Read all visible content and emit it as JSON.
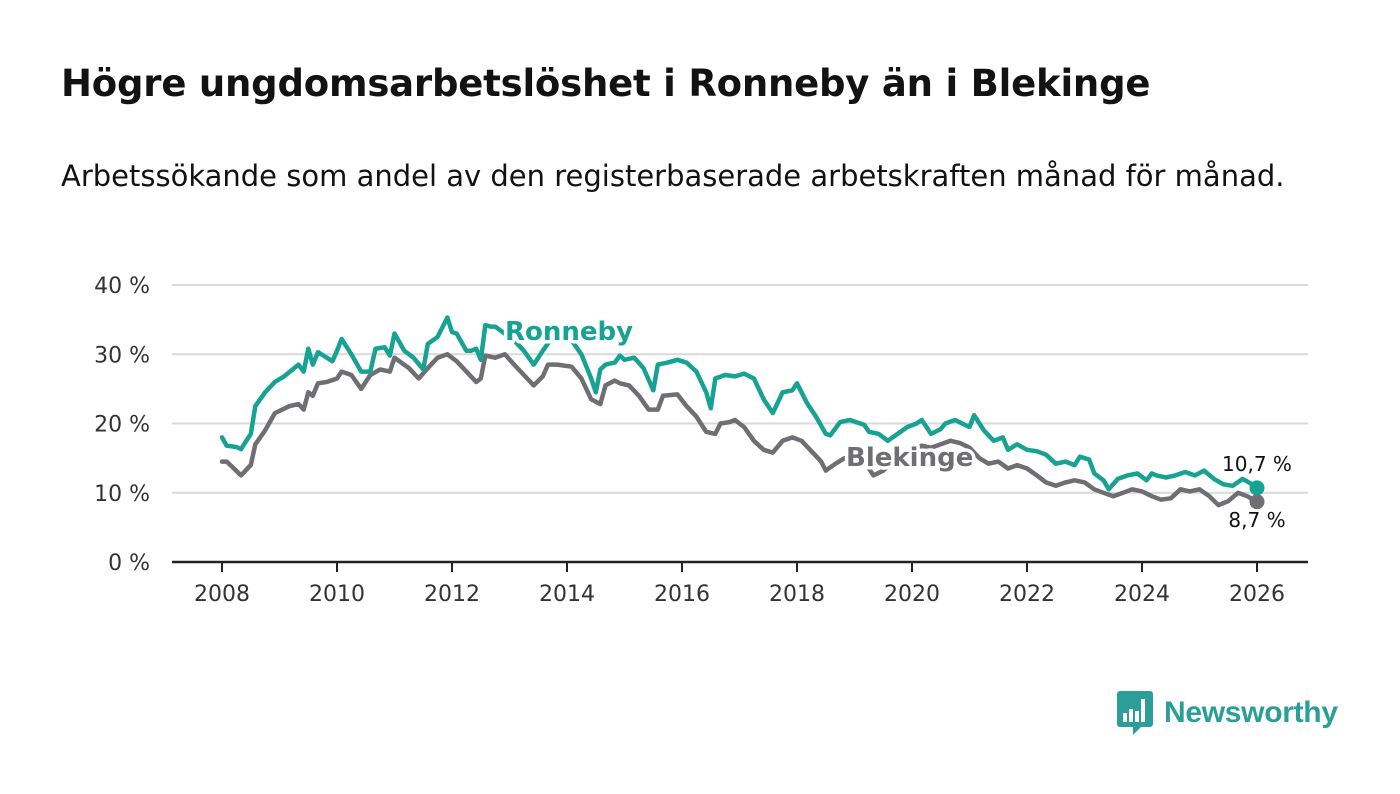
{
  "title": "Högre ungdomsarbetslöshet i Ronneby än i Blekinge",
  "subtitle": "Arbetssökande som andel av den registerbaserade arbetskraften månad för månad.",
  "brand": {
    "name": "Newsworthy",
    "icon": "bar-chart-speech-bubble-icon"
  },
  "colors": {
    "ronneby": "#17a294",
    "blekinge": "#6f6e74",
    "grid": "#d9d9d9",
    "axis": "#222222"
  },
  "chart_data": {
    "type": "line",
    "title": "Högre ungdomsarbetslöshet i Ronneby än i Blekinge",
    "xlabel": "",
    "ylabel": "",
    "xlim": [
      2007.5,
      2026.8
    ],
    "ylim": [
      0,
      40
    ],
    "grid": true,
    "x_ticks": [
      2008,
      2010,
      2012,
      2014,
      2016,
      2018,
      2020,
      2022,
      2024,
      2026
    ],
    "x_tick_labels": [
      "2008",
      "2010",
      "2012",
      "2014",
      "2016",
      "2018",
      "2020",
      "2022",
      "2024",
      "2026"
    ],
    "y_ticks": [
      0,
      10,
      20,
      30,
      40
    ],
    "y_tick_labels": [
      "0 %",
      "10 %",
      "20 %",
      "30 %",
      "40 %"
    ],
    "series": [
      {
        "name": "Ronneby",
        "label": "Ronneby",
        "color": "#17a294",
        "end_value": 10.7,
        "end_label": "10,7 %",
        "points": [
          [
            2008.0,
            18.0
          ],
          [
            2008.08,
            16.8
          ],
          [
            2008.25,
            16.6
          ],
          [
            2008.33,
            16.3
          ],
          [
            2008.5,
            18.5
          ],
          [
            2008.58,
            22.5
          ],
          [
            2008.75,
            24.5
          ],
          [
            2008.92,
            26.0
          ],
          [
            2009.08,
            26.8
          ],
          [
            2009.33,
            28.5
          ],
          [
            2009.42,
            27.5
          ],
          [
            2009.5,
            30.8
          ],
          [
            2009.58,
            28.5
          ],
          [
            2009.67,
            30.3
          ],
          [
            2009.92,
            29.0
          ],
          [
            2010.0,
            30.5
          ],
          [
            2010.08,
            32.2
          ],
          [
            2010.25,
            30.0
          ],
          [
            2010.42,
            27.5
          ],
          [
            2010.58,
            27.5
          ],
          [
            2010.67,
            30.8
          ],
          [
            2010.83,
            31.0
          ],
          [
            2010.92,
            29.8
          ],
          [
            2011.0,
            33.0
          ],
          [
            2011.17,
            30.5
          ],
          [
            2011.33,
            29.5
          ],
          [
            2011.5,
            27.8
          ],
          [
            2011.58,
            31.5
          ],
          [
            2011.75,
            32.5
          ],
          [
            2011.92,
            35.3
          ],
          [
            2012.0,
            33.2
          ],
          [
            2012.08,
            33.0
          ],
          [
            2012.25,
            30.5
          ],
          [
            2012.33,
            30.5
          ],
          [
            2012.42,
            30.8
          ],
          [
            2012.5,
            29.2
          ],
          [
            2012.58,
            34.2
          ],
          [
            2012.67,
            34.0
          ],
          [
            2012.75,
            34.0
          ],
          [
            2013.08,
            32.0
          ],
          [
            2013.25,
            30.5
          ],
          [
            2013.42,
            28.5
          ],
          [
            2013.58,
            30.5
          ],
          [
            2013.83,
            33.5
          ],
          [
            2014.08,
            32.0
          ],
          [
            2014.25,
            30.0
          ],
          [
            2014.42,
            26.5
          ],
          [
            2014.5,
            24.5
          ],
          [
            2014.58,
            27.8
          ],
          [
            2014.67,
            28.5
          ],
          [
            2014.83,
            28.8
          ],
          [
            2014.92,
            29.8
          ],
          [
            2015.0,
            29.2
          ],
          [
            2015.17,
            29.5
          ],
          [
            2015.33,
            28.0
          ],
          [
            2015.5,
            24.8
          ],
          [
            2015.58,
            28.5
          ],
          [
            2015.75,
            28.8
          ],
          [
            2015.92,
            29.2
          ],
          [
            2016.08,
            28.8
          ],
          [
            2016.25,
            27.5
          ],
          [
            2016.42,
            24.5
          ],
          [
            2016.5,
            22.2
          ],
          [
            2016.58,
            26.5
          ],
          [
            2016.75,
            27.0
          ],
          [
            2016.92,
            26.8
          ],
          [
            2017.08,
            27.2
          ],
          [
            2017.25,
            26.5
          ],
          [
            2017.42,
            23.5
          ],
          [
            2017.58,
            21.5
          ],
          [
            2017.75,
            24.5
          ],
          [
            2017.92,
            24.8
          ],
          [
            2018.0,
            25.8
          ],
          [
            2018.17,
            23.0
          ],
          [
            2018.33,
            21.0
          ],
          [
            2018.5,
            18.5
          ],
          [
            2018.58,
            18.3
          ],
          [
            2018.75,
            20.2
          ],
          [
            2018.92,
            20.5
          ],
          [
            2019.17,
            19.8
          ],
          [
            2019.25,
            18.8
          ],
          [
            2019.42,
            18.5
          ],
          [
            2019.58,
            17.5
          ],
          [
            2019.75,
            18.5
          ],
          [
            2019.92,
            19.5
          ],
          [
            2020.08,
            20.0
          ],
          [
            2020.17,
            20.5
          ],
          [
            2020.33,
            18.5
          ],
          [
            2020.5,
            19.2
          ],
          [
            2020.58,
            20.0
          ],
          [
            2020.75,
            20.5
          ],
          [
            2020.92,
            19.8
          ],
          [
            2021.0,
            19.5
          ],
          [
            2021.08,
            21.2
          ],
          [
            2021.25,
            19.0
          ],
          [
            2021.42,
            17.5
          ],
          [
            2021.58,
            18.0
          ],
          [
            2021.67,
            16.2
          ],
          [
            2021.83,
            17.0
          ],
          [
            2022.0,
            16.2
          ],
          [
            2022.17,
            16.0
          ],
          [
            2022.33,
            15.5
          ],
          [
            2022.5,
            14.2
          ],
          [
            2022.67,
            14.5
          ],
          [
            2022.83,
            14.0
          ],
          [
            2022.92,
            15.2
          ],
          [
            2023.08,
            14.8
          ],
          [
            2023.17,
            12.8
          ],
          [
            2023.33,
            11.8
          ],
          [
            2023.42,
            10.5
          ],
          [
            2023.58,
            12.0
          ],
          [
            2023.75,
            12.5
          ],
          [
            2023.92,
            12.8
          ],
          [
            2024.08,
            11.8
          ],
          [
            2024.17,
            12.8
          ],
          [
            2024.25,
            12.5
          ],
          [
            2024.42,
            12.2
          ],
          [
            2024.58,
            12.5
          ],
          [
            2024.75,
            13.0
          ],
          [
            2024.92,
            12.5
          ],
          [
            2025.08,
            13.2
          ],
          [
            2025.25,
            12.0
          ],
          [
            2025.42,
            11.2
          ],
          [
            2025.58,
            11.0
          ],
          [
            2025.75,
            12.0
          ],
          [
            2025.92,
            11.2
          ],
          [
            2026.0,
            10.7
          ]
        ]
      },
      {
        "name": "Blekinge",
        "label": "Blekinge",
        "color": "#6f6e74",
        "end_value": 8.7,
        "end_label": "8,7 %",
        "points": [
          [
            2008.0,
            14.5
          ],
          [
            2008.08,
            14.5
          ],
          [
            2008.17,
            13.8
          ],
          [
            2008.33,
            12.5
          ],
          [
            2008.5,
            14.0
          ],
          [
            2008.58,
            17.0
          ],
          [
            2008.75,
            19.0
          ],
          [
            2008.92,
            21.5
          ],
          [
            2009.17,
            22.5
          ],
          [
            2009.33,
            22.8
          ],
          [
            2009.42,
            22.0
          ],
          [
            2009.5,
            24.5
          ],
          [
            2009.58,
            24.0
          ],
          [
            2009.67,
            25.8
          ],
          [
            2009.83,
            26.0
          ],
          [
            2010.0,
            26.5
          ],
          [
            2010.08,
            27.5
          ],
          [
            2010.25,
            27.0
          ],
          [
            2010.42,
            25.0
          ],
          [
            2010.58,
            27.0
          ],
          [
            2010.75,
            27.8
          ],
          [
            2010.92,
            27.5
          ],
          [
            2011.0,
            29.5
          ],
          [
            2011.25,
            28.0
          ],
          [
            2011.42,
            26.5
          ],
          [
            2011.58,
            28.0
          ],
          [
            2011.75,
            29.5
          ],
          [
            2011.92,
            30.0
          ],
          [
            2012.08,
            29.0
          ],
          [
            2012.25,
            27.5
          ],
          [
            2012.42,
            26.0
          ],
          [
            2012.5,
            26.5
          ],
          [
            2012.58,
            29.8
          ],
          [
            2012.75,
            29.5
          ],
          [
            2012.92,
            30.0
          ],
          [
            2013.08,
            28.5
          ],
          [
            2013.25,
            27.0
          ],
          [
            2013.42,
            25.5
          ],
          [
            2013.58,
            26.8
          ],
          [
            2013.67,
            28.5
          ],
          [
            2013.83,
            28.5
          ],
          [
            2014.08,
            28.2
          ],
          [
            2014.25,
            26.5
          ],
          [
            2014.42,
            23.5
          ],
          [
            2014.58,
            22.8
          ],
          [
            2014.67,
            25.5
          ],
          [
            2014.83,
            26.2
          ],
          [
            2014.92,
            25.8
          ],
          [
            2015.08,
            25.5
          ],
          [
            2015.25,
            24.0
          ],
          [
            2015.42,
            22.0
          ],
          [
            2015.58,
            22.0
          ],
          [
            2015.67,
            24.0
          ],
          [
            2015.92,
            24.2
          ],
          [
            2016.08,
            22.5
          ],
          [
            2016.25,
            21.0
          ],
          [
            2016.42,
            18.8
          ],
          [
            2016.58,
            18.5
          ],
          [
            2016.67,
            20.0
          ],
          [
            2016.83,
            20.2
          ],
          [
            2016.92,
            20.5
          ],
          [
            2017.08,
            19.5
          ],
          [
            2017.25,
            17.5
          ],
          [
            2017.42,
            16.2
          ],
          [
            2017.58,
            15.8
          ],
          [
            2017.75,
            17.5
          ],
          [
            2017.92,
            18.0
          ],
          [
            2018.08,
            17.5
          ],
          [
            2018.25,
            16.0
          ],
          [
            2018.42,
            14.5
          ],
          [
            2018.5,
            13.2
          ],
          [
            2018.67,
            14.2
          ],
          [
            2018.83,
            15.0
          ],
          [
            2019.0,
            14.8
          ],
          [
            2019.17,
            14.5
          ],
          [
            2019.33,
            12.5
          ],
          [
            2019.5,
            13.2
          ],
          [
            2019.67,
            14.5
          ],
          [
            2019.83,
            15.8
          ],
          [
            2020.0,
            16.2
          ],
          [
            2020.17,
            16.8
          ],
          [
            2020.33,
            16.5
          ],
          [
            2020.5,
            17.0
          ],
          [
            2020.67,
            17.5
          ],
          [
            2020.83,
            17.2
          ],
          [
            2021.0,
            16.5
          ],
          [
            2021.17,
            15.0
          ],
          [
            2021.33,
            14.2
          ],
          [
            2021.5,
            14.5
          ],
          [
            2021.67,
            13.5
          ],
          [
            2021.83,
            14.0
          ],
          [
            2022.0,
            13.5
          ],
          [
            2022.17,
            12.5
          ],
          [
            2022.33,
            11.5
          ],
          [
            2022.5,
            11.0
          ],
          [
            2022.67,
            11.5
          ],
          [
            2022.83,
            11.8
          ],
          [
            2023.0,
            11.5
          ],
          [
            2023.17,
            10.5
          ],
          [
            2023.33,
            10.0
          ],
          [
            2023.5,
            9.5
          ],
          [
            2023.67,
            10.0
          ],
          [
            2023.83,
            10.5
          ],
          [
            2024.0,
            10.2
          ],
          [
            2024.17,
            9.5
          ],
          [
            2024.33,
            9.0
          ],
          [
            2024.5,
            9.2
          ],
          [
            2024.67,
            10.5
          ],
          [
            2024.83,
            10.2
          ],
          [
            2025.0,
            10.5
          ],
          [
            2025.17,
            9.5
          ],
          [
            2025.33,
            8.2
          ],
          [
            2025.5,
            8.8
          ],
          [
            2025.67,
            10.0
          ],
          [
            2025.83,
            9.5
          ],
          [
            2026.0,
            8.7
          ]
        ]
      }
    ]
  }
}
